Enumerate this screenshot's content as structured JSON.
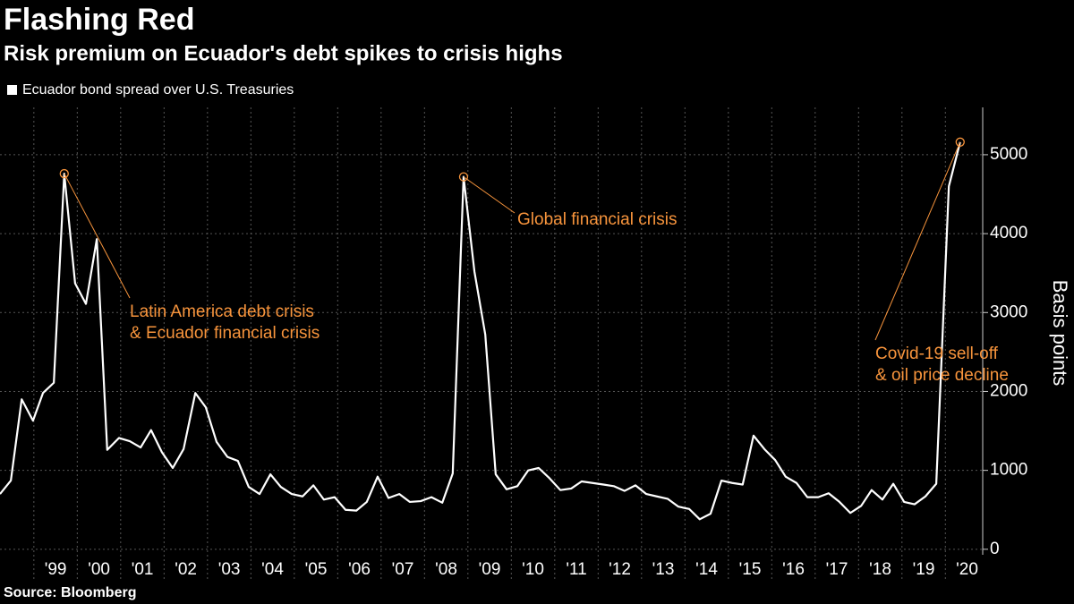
{
  "chart_data": {
    "type": "line",
    "title": "Flashing Red",
    "subtitle": "Risk premium on Ecuador's debt spikes to crisis highs",
    "y_label": "Basis points",
    "source": "Source: Bloomberg",
    "annotations": [
      {
        "text": [
          "Latin America debt crisis",
          "& Ecuador financial crisis"
        ]
      },
      {
        "text": [
          "Global financial crisis"
        ]
      },
      {
        "text": [
          "Covid-19 sell-off",
          "& oil price decline"
        ]
      }
    ],
    "xlim": [
      1998.22,
      2020.86
    ],
    "xticks": [
      {
        "value": 1999,
        "label": "'99"
      },
      {
        "value": 2000,
        "label": "'00"
      },
      {
        "value": 2001,
        "label": "'01"
      },
      {
        "value": 2002,
        "label": "'02"
      },
      {
        "value": 2003,
        "label": "'03"
      },
      {
        "value": 2004,
        "label": "'04"
      },
      {
        "value": 2005,
        "label": "'05"
      },
      {
        "value": 2006,
        "label": "'06"
      },
      {
        "value": 2007,
        "label": "'07"
      },
      {
        "value": 2008,
        "label": "'08"
      },
      {
        "value": 2009,
        "label": "'09"
      },
      {
        "value": 2010,
        "label": "'10"
      },
      {
        "value": 2011,
        "label": "'11"
      },
      {
        "value": 2012,
        "label": "'12"
      },
      {
        "value": 2013,
        "label": "'13"
      },
      {
        "value": 2014,
        "label": "'14"
      },
      {
        "value": 2015,
        "label": "'15"
      },
      {
        "value": 2016,
        "label": "'16"
      },
      {
        "value": 2017,
        "label": "'17"
      },
      {
        "value": 2018,
        "label": "'18"
      },
      {
        "value": 2019,
        "label": "'19"
      },
      {
        "value": 2020,
        "label": "'20"
      }
    ],
    "ylim": [
      -70,
      5600
    ],
    "yticks": [
      0,
      1000,
      2000,
      3000,
      4000,
      5000
    ],
    "grid": true,
    "x": [
      1998.22,
      1998.47,
      1998.72,
      1998.98,
      1999.21,
      1999.46,
      1999.7,
      1999.95,
      2000.2,
      2000.45,
      2000.69,
      2000.96,
      2001.21,
      2001.46,
      2001.7,
      2001.95,
      2002.2,
      2002.45,
      2002.72,
      2002.96,
      2003.21,
      2003.46,
      2003.7,
      2003.95,
      2004.2,
      2004.45,
      2004.69,
      2004.94,
      2005.19,
      2005.44,
      2005.68,
      2005.93,
      2006.18,
      2006.43,
      2006.67,
      2006.92,
      2007.17,
      2007.42,
      2007.66,
      2007.91,
      2008.16,
      2008.41,
      2008.65,
      2008.9,
      2009.15,
      2009.4,
      2009.64,
      2009.89,
      2010.14,
      2010.39,
      2010.63,
      2010.88,
      2011.13,
      2011.38,
      2011.62,
      2011.87,
      2012.12,
      2012.36,
      2012.61,
      2012.86,
      2013.11,
      2013.35,
      2013.6,
      2013.85,
      2014.1,
      2014.34,
      2014.59,
      2014.84,
      2015.09,
      2015.33,
      2015.58,
      2015.83,
      2016.08,
      2016.32,
      2016.57,
      2016.82,
      2017.07,
      2017.31,
      2017.56,
      2017.81,
      2018.06,
      2018.3,
      2018.55,
      2018.8,
      2019.05,
      2019.29,
      2019.54,
      2019.79,
      2020.08,
      2020.34
    ],
    "series": [
      {
        "name": "Ecuador bond spread over U.S. Treasuries",
        "color": "#ffffff",
        "values": [
          700,
          870,
          1900,
          1630,
          1980,
          2110,
          4760,
          3370,
          3110,
          3930,
          1260,
          1410,
          1370,
          1290,
          1510,
          1230,
          1030,
          1270,
          1980,
          1800,
          1360,
          1170,
          1120,
          790,
          700,
          950,
          790,
          700,
          670,
          810,
          630,
          660,
          500,
          490,
          600,
          920,
          650,
          700,
          600,
          610,
          660,
          590,
          960,
          4720,
          3520,
          2720,
          950,
          760,
          800,
          1000,
          1030,
          900,
          750,
          770,
          860,
          840,
          820,
          800,
          740,
          810,
          700,
          670,
          640,
          540,
          510,
          380,
          450,
          870,
          840,
          820,
          1440,
          1270,
          1130,
          920,
          840,
          660,
          660,
          710,
          600,
          460,
          550,
          750,
          630,
          830,
          600,
          570,
          670,
          830,
          4600,
          5160
        ]
      }
    ]
  }
}
